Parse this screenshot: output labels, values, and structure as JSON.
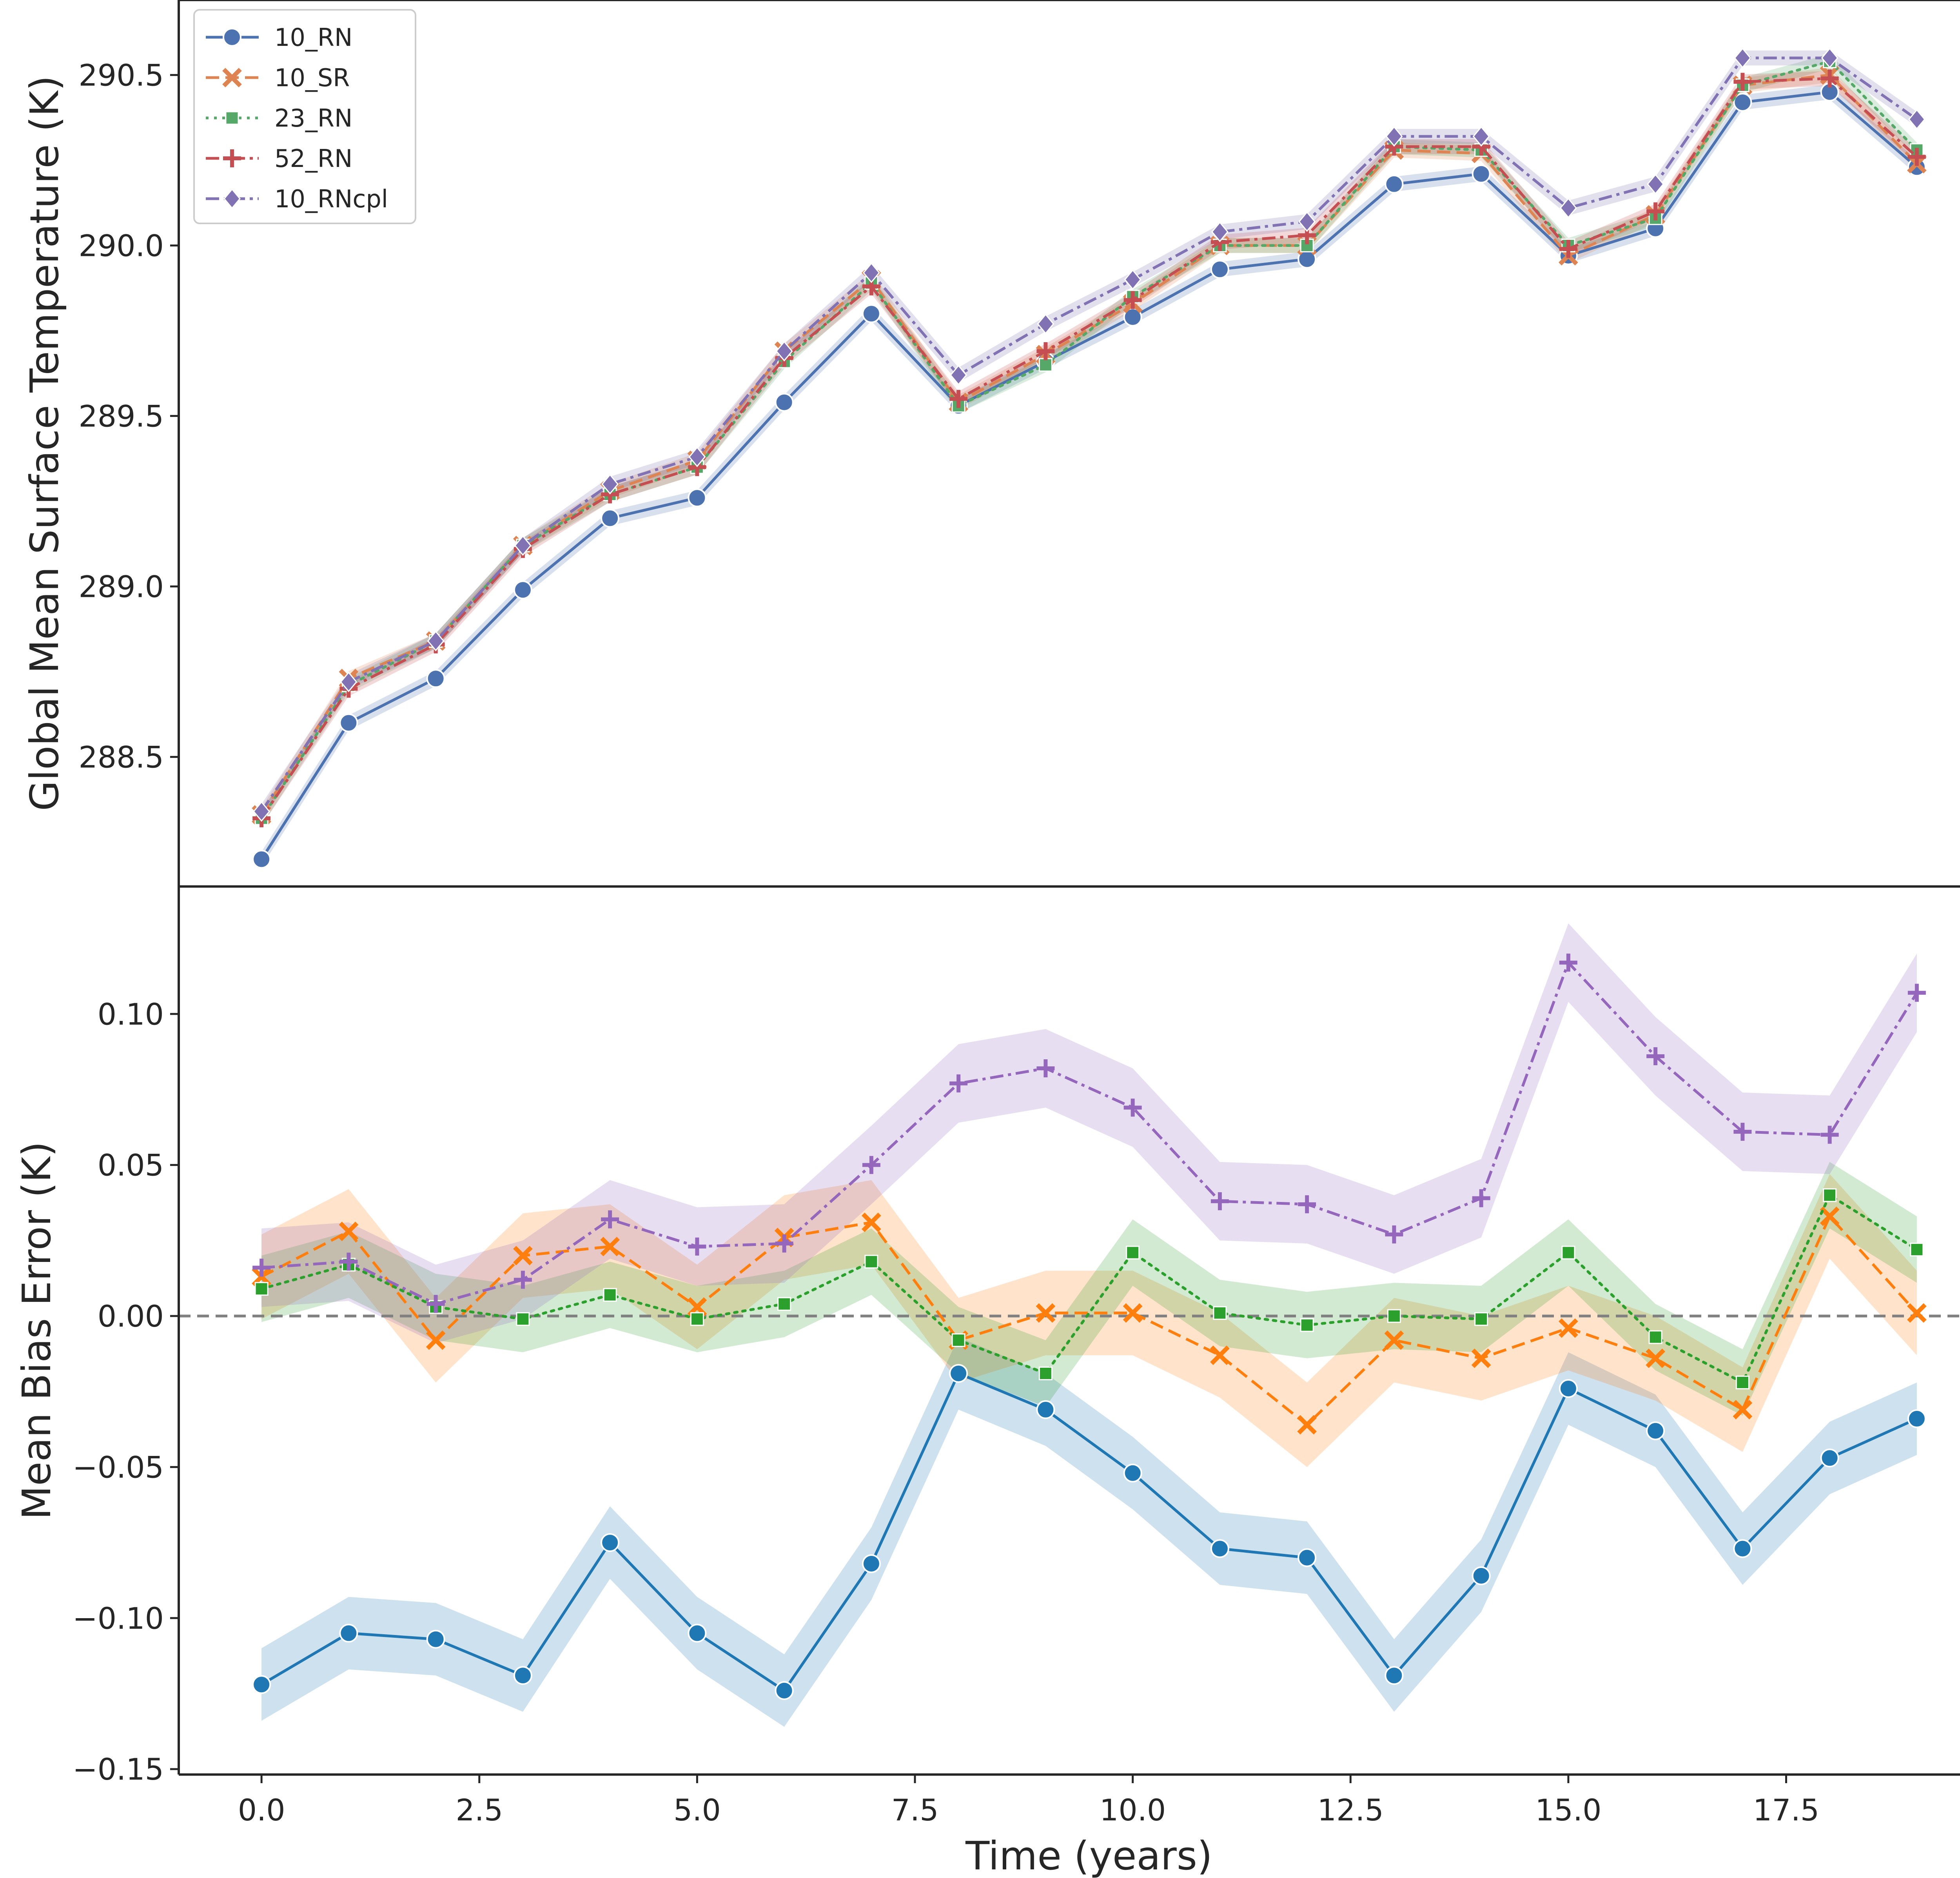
{
  "chart_data": [
    {
      "type": "line",
      "xlabel": "",
      "ylabel": "Global Mean Surface Temperature (K)",
      "ylim": [
        288.12,
        290.72
      ],
      "xlim": [
        -0.95,
        19.95
      ],
      "y_ticks": [
        "288.5",
        "289.0",
        "289.5",
        "290.0",
        "290.5"
      ],
      "x": [
        0,
        1,
        2,
        3,
        4,
        5,
        6,
        7,
        8,
        9,
        10,
        11,
        12,
        13,
        14,
        15,
        16,
        17,
        18,
        19
      ],
      "legend": {
        "position": "top-left",
        "entries": [
          "10_RN",
          "10_SR",
          "23_RN",
          "52_RN",
          "10_RNcpl"
        ]
      },
      "series": [
        {
          "name": "10_RN",
          "color": "#4c72b0",
          "marker": "circle",
          "dash": "solid",
          "values": [
            288.2,
            288.6,
            288.73,
            288.99,
            289.2,
            289.26,
            289.54,
            289.8,
            289.53,
            289.66,
            289.79,
            289.93,
            289.96,
            290.18,
            290.21,
            289.97,
            290.05,
            290.42,
            290.45,
            290.23
          ]
        },
        {
          "name": "10_SR",
          "color": "#dd8452",
          "marker": "x",
          "dash": "dashed",
          "values": [
            288.33,
            288.73,
            288.84,
            289.12,
            289.28,
            289.37,
            289.69,
            289.9,
            289.54,
            289.68,
            289.83,
            290.0,
            290.0,
            290.28,
            290.27,
            289.97,
            290.09,
            290.47,
            290.5,
            290.24
          ]
        },
        {
          "name": "23_RN",
          "color": "#55a868",
          "marker": "square",
          "dash": "dotted",
          "values": [
            288.32,
            288.71,
            288.84,
            289.12,
            289.27,
            289.35,
            289.66,
            289.89,
            289.53,
            289.65,
            289.85,
            290.0,
            290.0,
            290.29,
            290.28,
            290.0,
            290.08,
            290.47,
            290.54,
            290.28
          ]
        },
        {
          "name": "52_RN",
          "color": "#c44e52",
          "marker": "plus",
          "dash": "dashdot",
          "values": [
            288.32,
            288.7,
            288.83,
            289.11,
            289.27,
            289.35,
            289.67,
            289.88,
            289.55,
            289.69,
            289.84,
            290.01,
            290.03,
            290.29,
            290.29,
            289.99,
            290.1,
            290.48,
            290.49,
            290.26
          ]
        },
        {
          "name": "10_RNcpl",
          "color": "#8172b3",
          "marker": "diamond",
          "dash": "dashdot",
          "values": [
            288.34,
            288.72,
            288.84,
            289.12,
            289.3,
            289.38,
            289.69,
            289.92,
            289.62,
            289.77,
            289.9,
            290.04,
            290.07,
            290.32,
            290.32,
            290.11,
            290.18,
            290.55,
            290.55,
            290.37
          ]
        }
      ]
    },
    {
      "type": "line",
      "xlabel": "Time (years)",
      "ylabel": "Mean Bias Error (K)",
      "ylim": [
        -0.1518,
        0.1422
      ],
      "xlim": [
        -0.95,
        19.95
      ],
      "x_ticks": [
        "0.0",
        "2.5",
        "5.0",
        "7.5",
        "10.0",
        "12.5",
        "15.0",
        "17.5"
      ],
      "y_ticks": [
        "−0.15",
        "−0.10",
        "−0.05",
        "0.00",
        "0.05",
        "0.10"
      ],
      "reference_line": {
        "y": 0,
        "style": "dashed",
        "color": "#808080"
      },
      "x": [
        0,
        1,
        2,
        3,
        4,
        5,
        6,
        7,
        8,
        9,
        10,
        11,
        12,
        13,
        14,
        15,
        16,
        17,
        18,
        19
      ],
      "series": [
        {
          "name": "10_RN",
          "color": "#1f77b4",
          "marker": "circle",
          "dash": "solid",
          "values": [
            -0.122,
            -0.105,
            -0.107,
            -0.119,
            -0.075,
            -0.105,
            -0.124,
            -0.082,
            -0.019,
            -0.031,
            -0.052,
            -0.077,
            -0.08,
            -0.119,
            -0.086,
            -0.024,
            -0.038,
            -0.077,
            -0.047,
            -0.034
          ],
          "band": 0.012
        },
        {
          "name": "10_SR",
          "color": "#ff7f0e",
          "marker": "x",
          "dash": "dashed",
          "values": [
            0.013,
            0.028,
            -0.008,
            0.02,
            0.023,
            0.003,
            0.026,
            0.031,
            -0.008,
            0.001,
            0.001,
            -0.013,
            -0.036,
            -0.008,
            -0.014,
            -0.004,
            -0.014,
            -0.031,
            0.033,
            0.001
          ],
          "band": 0.014
        },
        {
          "name": "23_RN",
          "color": "#2ca02c",
          "marker": "square",
          "dash": "dotted",
          "values": [
            0.009,
            0.017,
            0.003,
            -0.001,
            0.007,
            -0.001,
            0.004,
            0.018,
            -0.008,
            -0.019,
            0.021,
            0.001,
            -0.003,
            0.0,
            -0.001,
            0.021,
            -0.007,
            -0.022,
            0.04,
            0.022
          ],
          "band": 0.011
        },
        {
          "name": "10_RNcpl",
          "color": "#9467bd",
          "marker": "plus",
          "dash": "dashdot",
          "values": [
            0.016,
            0.018,
            0.004,
            0.012,
            0.032,
            0.023,
            0.024,
            0.05,
            0.077,
            0.082,
            0.069,
            0.038,
            0.037,
            0.027,
            0.039,
            0.117,
            0.086,
            0.061,
            0.06,
            0.107
          ],
          "band": 0.013
        }
      ]
    }
  ]
}
